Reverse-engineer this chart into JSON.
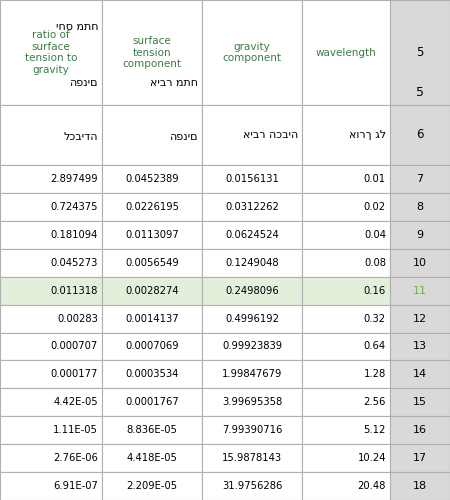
{
  "green_headers": [
    "ratio of\nsurface\ntension to\ngravity",
    "surface\ntension\ncomponent",
    "gravity\ncomponent",
    "wavelength"
  ],
  "green_color": "#3a7d44",
  "hebrew_col0_lines": [
    "יחס מתח",
    "הפנים",
    "לכבידה"
  ],
  "hebrew_col1_lines": [
    "איבר מתח",
    "הפנים"
  ],
  "hebrew_col2": "איבר הכביה",
  "hebrew_col3": "אורך גל",
  "wavelength": [
    "0.01",
    "0.02",
    "0.04",
    "0.08",
    "0.16",
    "0.32",
    "0.64",
    "1.28",
    "2.56",
    "5.12",
    "10.24",
    "20.48"
  ],
  "gravity": [
    "0.0156131",
    "0.0312262",
    "0.0624524",
    "0.1249048",
    "0.2498096",
    "0.4996192",
    "0.99923839",
    "1.99847679",
    "3.99695358",
    "7.99390716",
    "15.9878143",
    "31.9756286"
  ],
  "surface": [
    "0.0452389",
    "0.0226195",
    "0.0113097",
    "0.0056549",
    "0.0028274",
    "0.0014137",
    "0.0007069",
    "0.0003534",
    "0.0001767",
    "8.836E-05",
    "4.418E-05",
    "2.209E-05"
  ],
  "ratio": [
    "2.897499",
    "0.724375",
    "0.181094",
    "0.045273",
    "0.011318",
    "0.00283",
    "0.000707",
    "0.000177",
    "4.42E-05",
    "1.11E-05",
    "2.76E-06",
    "6.91E-07"
  ],
  "row_numbers": [
    7,
    8,
    9,
    10,
    11,
    12,
    13,
    14,
    15,
    16,
    17,
    18
  ],
  "highlight_row": 11,
  "highlight_bg": "#e2efda",
  "highlight_num_color": "#70ad47",
  "border_color": "#b0b0b0",
  "gray_bg": "#d9d9d9",
  "white": "#ffffff",
  "black": "#000000"
}
